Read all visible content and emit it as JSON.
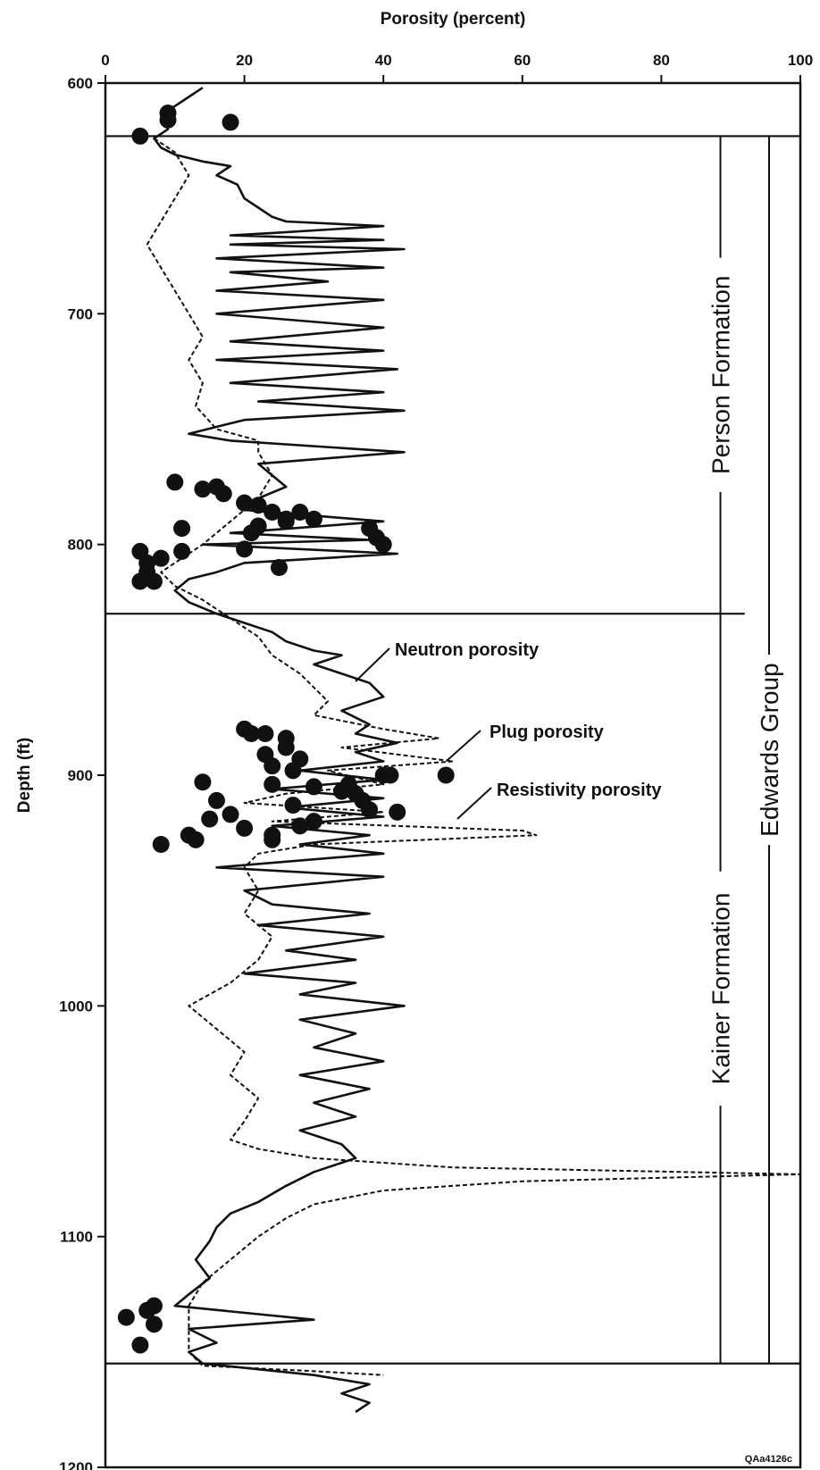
{
  "chart_data": {
    "type": "line",
    "xlabel": "Porosity (percent)",
    "ylabel": "Depth (ft)",
    "xlim": [
      0,
      100
    ],
    "ylim": [
      600,
      1200
    ],
    "x_ticks": [
      0,
      20,
      40,
      60,
      80,
      100
    ],
    "y_ticks": [
      600,
      700,
      800,
      900,
      1000,
      1100,
      1200
    ],
    "boundaries": [
      {
        "depth": 623
      },
      {
        "depth": 830
      },
      {
        "depth": 1155
      }
    ],
    "units": [
      {
        "name": "Person Formation",
        "depth_top": 623,
        "depth_bottom": 830
      },
      {
        "name": "Kainer Formation",
        "depth_top": 830,
        "depth_bottom": 1155
      },
      {
        "name": "Edwards Group",
        "depth_top": 623,
        "depth_bottom": 1155
      }
    ],
    "annotations": [
      {
        "text": "Neutron porosity"
      },
      {
        "text": "Plug porosity"
      },
      {
        "text": "Resistivity porosity"
      }
    ],
    "figure_id": "QAa4126c",
    "series": [
      {
        "name": "Neutron porosity",
        "style": "solid",
        "points": [
          [
            14,
            602
          ],
          [
            12,
            606
          ],
          [
            10,
            610
          ],
          [
            8,
            614
          ],
          [
            9,
            620
          ],
          [
            7,
            624
          ],
          [
            8,
            628
          ],
          [
            10,
            631
          ],
          [
            14,
            634
          ],
          [
            18,
            636
          ],
          [
            16,
            640
          ],
          [
            19,
            644
          ],
          [
            20,
            650
          ],
          [
            22,
            654
          ],
          [
            24,
            658
          ],
          [
            26,
            660
          ],
          [
            40,
            662
          ],
          [
            24,
            665
          ],
          [
            18,
            666
          ],
          [
            40,
            668
          ],
          [
            18,
            670
          ],
          [
            43,
            672
          ],
          [
            16,
            676
          ],
          [
            40,
            680
          ],
          [
            18,
            682
          ],
          [
            32,
            686
          ],
          [
            16,
            690
          ],
          [
            40,
            694
          ],
          [
            16,
            700
          ],
          [
            40,
            706
          ],
          [
            18,
            712
          ],
          [
            40,
            716
          ],
          [
            16,
            720
          ],
          [
            42,
            724
          ],
          [
            18,
            730
          ],
          [
            40,
            734
          ],
          [
            22,
            738
          ],
          [
            43,
            742
          ],
          [
            20,
            746
          ],
          [
            12,
            752
          ],
          [
            18,
            755
          ],
          [
            43,
            760
          ],
          [
            22,
            765
          ],
          [
            24,
            770
          ],
          [
            26,
            775
          ],
          [
            22,
            780
          ],
          [
            20,
            785
          ],
          [
            40,
            790
          ],
          [
            18,
            795
          ],
          [
            38,
            798
          ],
          [
            14,
            800
          ],
          [
            42,
            804
          ],
          [
            20,
            808
          ],
          [
            16,
            812
          ],
          [
            12,
            815
          ],
          [
            10,
            820
          ],
          [
            12,
            825
          ],
          [
            16,
            830
          ],
          [
            20,
            834
          ],
          [
            24,
            838
          ],
          [
            26,
            842
          ],
          [
            30,
            846
          ],
          [
            34,
            848
          ],
          [
            30,
            852
          ],
          [
            34,
            856
          ],
          [
            38,
            860
          ],
          [
            40,
            866
          ],
          [
            34,
            872
          ],
          [
            38,
            878
          ],
          [
            36,
            882
          ],
          [
            42,
            886
          ],
          [
            36,
            890
          ],
          [
            40,
            894
          ],
          [
            28,
            898
          ],
          [
            40,
            902
          ],
          [
            24,
            906
          ],
          [
            40,
            910
          ],
          [
            26,
            914
          ],
          [
            40,
            918
          ],
          [
            24,
            922
          ],
          [
            38,
            926
          ],
          [
            28,
            930
          ],
          [
            40,
            934
          ],
          [
            16,
            940
          ],
          [
            40,
            944
          ],
          [
            20,
            950
          ],
          [
            24,
            956
          ],
          [
            38,
            960
          ],
          [
            22,
            965
          ],
          [
            40,
            970
          ],
          [
            26,
            976
          ],
          [
            36,
            980
          ],
          [
            20,
            986
          ],
          [
            36,
            990
          ],
          [
            28,
            995
          ],
          [
            43,
            1000
          ],
          [
            28,
            1006
          ],
          [
            36,
            1012
          ],
          [
            30,
            1018
          ],
          [
            40,
            1024
          ],
          [
            28,
            1030
          ],
          [
            38,
            1036
          ],
          [
            30,
            1042
          ],
          [
            36,
            1048
          ],
          [
            28,
            1054
          ],
          [
            34,
            1060
          ],
          [
            36,
            1066
          ],
          [
            30,
            1072
          ],
          [
            26,
            1078
          ],
          [
            22,
            1085
          ],
          [
            18,
            1090
          ],
          [
            16,
            1096
          ],
          [
            15,
            1102
          ],
          [
            13,
            1110
          ],
          [
            15,
            1118
          ],
          [
            12,
            1125
          ],
          [
            10,
            1130
          ],
          [
            30,
            1136
          ],
          [
            12,
            1140
          ],
          [
            16,
            1146
          ],
          [
            12,
            1150
          ],
          [
            14,
            1155
          ],
          [
            30,
            1160
          ],
          [
            38,
            1164
          ],
          [
            34,
            1168
          ],
          [
            38,
            1172
          ],
          [
            36,
            1176
          ]
        ]
      },
      {
        "name": "Resistivity porosity",
        "style": "dashed",
        "points": [
          [
            7,
            624
          ],
          [
            10,
            630
          ],
          [
            12,
            640
          ],
          [
            10,
            650
          ],
          [
            8,
            660
          ],
          [
            6,
            670
          ],
          [
            8,
            680
          ],
          [
            10,
            690
          ],
          [
            12,
            700
          ],
          [
            14,
            710
          ],
          [
            12,
            720
          ],
          [
            14,
            730
          ],
          [
            13,
            740
          ],
          [
            16,
            750
          ],
          [
            22,
            755
          ],
          [
            22,
            760
          ],
          [
            24,
            770
          ],
          [
            22,
            780
          ],
          [
            18,
            790
          ],
          [
            14,
            800
          ],
          [
            10,
            808
          ],
          [
            8,
            812
          ],
          [
            10,
            818
          ],
          [
            14,
            824
          ],
          [
            18,
            832
          ],
          [
            22,
            840
          ],
          [
            24,
            848
          ],
          [
            28,
            856
          ],
          [
            30,
            862
          ],
          [
            32,
            868
          ],
          [
            30,
            874
          ],
          [
            40,
            880
          ],
          [
            48,
            884
          ],
          [
            34,
            888
          ],
          [
            50,
            894
          ],
          [
            32,
            898
          ],
          [
            40,
            904
          ],
          [
            26,
            908
          ],
          [
            20,
            912
          ],
          [
            40,
            916
          ],
          [
            24,
            920
          ],
          [
            60,
            924
          ],
          [
            62,
            926
          ],
          [
            30,
            930
          ],
          [
            22,
            934
          ],
          [
            20,
            940
          ],
          [
            22,
            950
          ],
          [
            20,
            960
          ],
          [
            24,
            970
          ],
          [
            22,
            980
          ],
          [
            18,
            990
          ],
          [
            12,
            1000
          ],
          [
            16,
            1010
          ],
          [
            20,
            1020
          ],
          [
            18,
            1030
          ],
          [
            22,
            1040
          ],
          [
            20,
            1050
          ],
          [
            18,
            1058
          ],
          [
            22,
            1062
          ],
          [
            30,
            1066
          ],
          [
            50,
            1070
          ],
          [
            100,
            1073
          ],
          [
            60,
            1076
          ],
          [
            40,
            1080
          ],
          [
            30,
            1086
          ],
          [
            26,
            1092
          ],
          [
            22,
            1100
          ],
          [
            18,
            1110
          ],
          [
            14,
            1120
          ],
          [
            12,
            1130
          ],
          [
            12,
            1140
          ],
          [
            12,
            1150
          ],
          [
            14,
            1156
          ],
          [
            28,
            1158
          ],
          [
            40,
            1160
          ]
        ]
      },
      {
        "name": "Plug porosity",
        "style": "markers",
        "points": [
          [
            9,
            613
          ],
          [
            9,
            616
          ],
          [
            18,
            617
          ],
          [
            5,
            623
          ],
          [
            10,
            773
          ],
          [
            14,
            776
          ],
          [
            16,
            775
          ],
          [
            17,
            778
          ],
          [
            20,
            782
          ],
          [
            22,
            783
          ],
          [
            24,
            786
          ],
          [
            26,
            789
          ],
          [
            28,
            786
          ],
          [
            30,
            789
          ],
          [
            22,
            792
          ],
          [
            21,
            795
          ],
          [
            11,
            793
          ],
          [
            26,
            790
          ],
          [
            38,
            793
          ],
          [
            39,
            797
          ],
          [
            40,
            800
          ],
          [
            5,
            803
          ],
          [
            11,
            803
          ],
          [
            6,
            808
          ],
          [
            8,
            806
          ],
          [
            6,
            812
          ],
          [
            7,
            816
          ],
          [
            5,
            816
          ],
          [
            20,
            802
          ],
          [
            25,
            810
          ],
          [
            20,
            880
          ],
          [
            21,
            882
          ],
          [
            23,
            882
          ],
          [
            26,
            884
          ],
          [
            26,
            888
          ],
          [
            23,
            891
          ],
          [
            28,
            893
          ],
          [
            24,
            896
          ],
          [
            27,
            898
          ],
          [
            24,
            904
          ],
          [
            30,
            905
          ],
          [
            35,
            904
          ],
          [
            36,
            908
          ],
          [
            40,
            900
          ],
          [
            41,
            900
          ],
          [
            49,
            900
          ],
          [
            14,
            903
          ],
          [
            16,
            911
          ],
          [
            18,
            917
          ],
          [
            15,
            919
          ],
          [
            20,
            923
          ],
          [
            24,
            926
          ],
          [
            28,
            922
          ],
          [
            30,
            920
          ],
          [
            27,
            913
          ],
          [
            34,
            907
          ],
          [
            37,
            911
          ],
          [
            38,
            915
          ],
          [
            42,
            916
          ],
          [
            8,
            930
          ],
          [
            12,
            926
          ],
          [
            13,
            928
          ],
          [
            24,
            928
          ],
          [
            3,
            1135
          ],
          [
            6,
            1132
          ],
          [
            7,
            1130
          ],
          [
            7,
            1138
          ],
          [
            5,
            1147
          ]
        ]
      }
    ]
  }
}
